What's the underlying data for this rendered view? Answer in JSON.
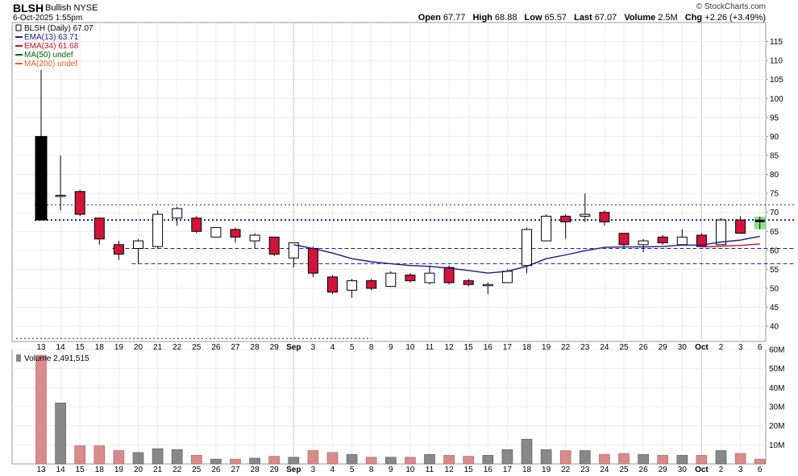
{
  "header": {
    "symbol": "BLSH",
    "description": "Bullish NYSE",
    "datetime": "6-Oct-2025 1:55pm",
    "credit": "© StockCharts.com",
    "quote": [
      {
        "label": "Open",
        "value": "67.77"
      },
      {
        "label": "High",
        "value": "68.88"
      },
      {
        "label": "Low",
        "value": "65.57"
      },
      {
        "label": "Last",
        "value": "67.07"
      },
      {
        "label": "Volume",
        "value": "2.5M"
      },
      {
        "label": "Chg",
        "value": "+2.26 (+3.49%)"
      }
    ]
  },
  "legend": {
    "price": "BLSH (Daily) 67.07",
    "ema13": "EMA(13) 63.71",
    "ema34": "EMA(34) 61.68",
    "ma50": "MA(50) undef",
    "ma200": "MA(200) undef",
    "volume": "Volume 2,491,515"
  },
  "colors": {
    "up": "#ffffff",
    "down": "#d2143c",
    "ema13": "#1a1a8c",
    "ema34": "#c8102e",
    "ma50": "#006400",
    "ma200": "#e8601c",
    "vol_up": "#888888",
    "vol_down": "#d98a8a",
    "trendline": "#1a1aa8",
    "last_bar": "#8ee08e"
  },
  "chart_data": {
    "type": "candlestick",
    "x_labels": [
      "13",
      "14",
      "15",
      "18",
      "19",
      "20",
      "21",
      "22",
      "25",
      "26",
      "27",
      "28",
      "29",
      "Sep",
      "3",
      "4",
      "5",
      "8",
      "9",
      "10",
      "11",
      "12",
      "15",
      "16",
      "17",
      "18",
      "19",
      "22",
      "23",
      "24",
      "25",
      "26",
      "29",
      "30",
      "Oct",
      "2",
      "3",
      "6"
    ],
    "ohlc": [
      [
        90,
        107.5,
        68,
        68
      ],
      [
        74.5,
        85,
        70.5,
        74.5
      ],
      [
        75.5,
        76,
        69,
        69.5
      ],
      [
        68.5,
        68.5,
        61.5,
        63
      ],
      [
        61.5,
        62.5,
        57.5,
        59
      ],
      [
        60.5,
        63,
        56.5,
        62.5
      ],
      [
        61,
        70.5,
        60.5,
        69.5
      ],
      [
        68.5,
        71.5,
        66.5,
        71
      ],
      [
        68.5,
        69,
        64.5,
        65
      ],
      [
        63.5,
        66,
        63.5,
        66
      ],
      [
        65.5,
        66,
        62,
        63.5
      ],
      [
        62.5,
        64.5,
        60.5,
        64
      ],
      [
        63.5,
        63.5,
        58.5,
        59
      ],
      [
        58,
        62,
        55.5,
        62
      ],
      [
        60.5,
        61,
        53,
        54
      ],
      [
        53,
        53.5,
        48.5,
        49
      ],
      [
        49.5,
        52.5,
        47.5,
        52
      ],
      [
        52,
        52.5,
        49.5,
        50
      ],
      [
        50.5,
        54.5,
        50.5,
        54
      ],
      [
        53.5,
        54,
        51.5,
        52
      ],
      [
        51.5,
        56,
        51,
        54
      ],
      [
        55.5,
        56,
        51,
        51.5
      ],
      [
        52,
        52.5,
        50.5,
        51
      ],
      [
        51,
        51.5,
        48.5,
        51
      ],
      [
        51.5,
        55,
        51.5,
        54.5
      ],
      [
        56,
        66,
        54,
        65.5
      ],
      [
        62.5,
        69.5,
        62.5,
        69
      ],
      [
        69,
        69.5,
        63,
        67.5
      ],
      [
        69,
        75,
        67.5,
        69.5
      ],
      [
        70,
        70.5,
        66.5,
        67.5
      ],
      [
        64.5,
        64.5,
        60.5,
        61.5
      ],
      [
        61.5,
        63,
        59.5,
        62.5
      ],
      [
        63.5,
        64,
        61.5,
        62
      ],
      [
        61.5,
        65.5,
        61.5,
        63.5
      ],
      [
        64,
        64.5,
        61,
        61
      ],
      [
        61.5,
        68.5,
        61.5,
        68
      ],
      [
        68,
        69,
        64.5,
        64.5
      ],
      [
        67.77,
        68.88,
        65.57,
        67.07
      ]
    ],
    "ema13": [
      [
        24,
        54.5
      ],
      [
        25,
        55.8
      ],
      [
        26,
        57.8
      ],
      [
        27,
        58.8
      ],
      [
        28,
        59.9
      ],
      [
        29,
        60.8
      ],
      [
        30,
        60.9
      ],
      [
        31,
        60.9
      ],
      [
        32,
        61.0
      ],
      [
        33,
        61.4
      ],
      [
        34,
        61.4
      ],
      [
        35,
        62.2
      ],
      [
        36,
        62.7
      ],
      [
        37,
        63.71
      ]
    ],
    "ema13_pre": [
      [
        13,
        61.5
      ],
      [
        14,
        60.5
      ],
      [
        15,
        59.3
      ],
      [
        16,
        57.8
      ],
      [
        17,
        57.0
      ],
      [
        18,
        56.5
      ],
      [
        19,
        56.0
      ],
      [
        20,
        55.8
      ],
      [
        21,
        55.3
      ],
      [
        22,
        54.7
      ],
      [
        23,
        54.0
      ],
      [
        24,
        54.5
      ]
    ],
    "ema34": [
      [
        34,
        60.9
      ],
      [
        35,
        61.1
      ],
      [
        36,
        61.3
      ],
      [
        37,
        61.68
      ]
    ],
    "volume_millions": [
      57,
      32,
      9.5,
      9.5,
      7,
      6,
      8,
      7.5,
      4.5,
      2.5,
      2.5,
      3,
      4,
      3.5,
      7,
      6,
      5,
      3.5,
      3.5,
      3.5,
      5,
      4.5,
      4,
      4.5,
      7.5,
      13,
      7.5,
      7,
      7,
      5,
      5.5,
      5,
      4.5,
      4.5,
      4.5,
      7,
      5.5,
      2.5
    ],
    "price_axis": {
      "min": 36,
      "max": 120,
      "ticks": [
        40,
        45,
        50,
        55,
        60,
        65,
        70,
        75,
        80,
        85,
        90,
        95,
        100,
        105,
        110,
        115
      ]
    },
    "volume_axis": {
      "min": 0,
      "max": 60,
      "ticks": [
        10,
        20,
        30,
        40,
        50,
        60
      ],
      "tick_labels": [
        "10M",
        "20M",
        "30M",
        "40M",
        "50M",
        "60M"
      ]
    },
    "hlines": [
      {
        "value": 72,
        "style": "dotted",
        "from": 0,
        "to": 37
      },
      {
        "value": 68,
        "style": "dotted-bold",
        "from": 0,
        "to": 37
      },
      {
        "value": 60.5,
        "style": "dashed",
        "from": 4,
        "to": 37
      },
      {
        "value": 56.5,
        "style": "dashed",
        "from": 5,
        "to": 37
      },
      {
        "value": 36.8,
        "style": "dotted",
        "from": -1,
        "to": 17
      }
    ],
    "grid": true
  }
}
